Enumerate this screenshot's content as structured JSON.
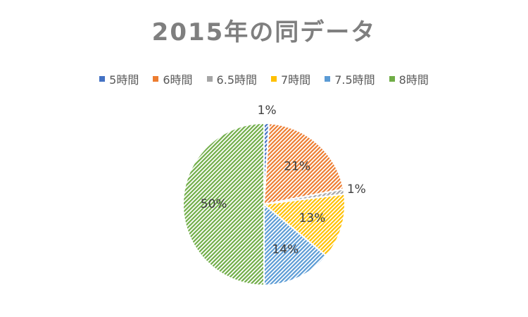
{
  "chart_data": {
    "type": "pie",
    "title": "2015年の同データ",
    "categories": [
      "5時間",
      "6時間",
      "6.5時間",
      "7時間",
      "7.5時間",
      "8時間"
    ],
    "values": [
      1,
      21,
      1,
      13,
      14,
      50
    ],
    "data_labels": [
      "1%",
      "21%",
      "1%",
      "13%",
      "14%",
      "50%"
    ],
    "colors": [
      "#4472c4",
      "#ed7d31",
      "#a5a5a5",
      "#ffc000",
      "#5b9bd5",
      "#70ad47"
    ],
    "fill_pattern": "hatched",
    "legend_position": "top"
  }
}
